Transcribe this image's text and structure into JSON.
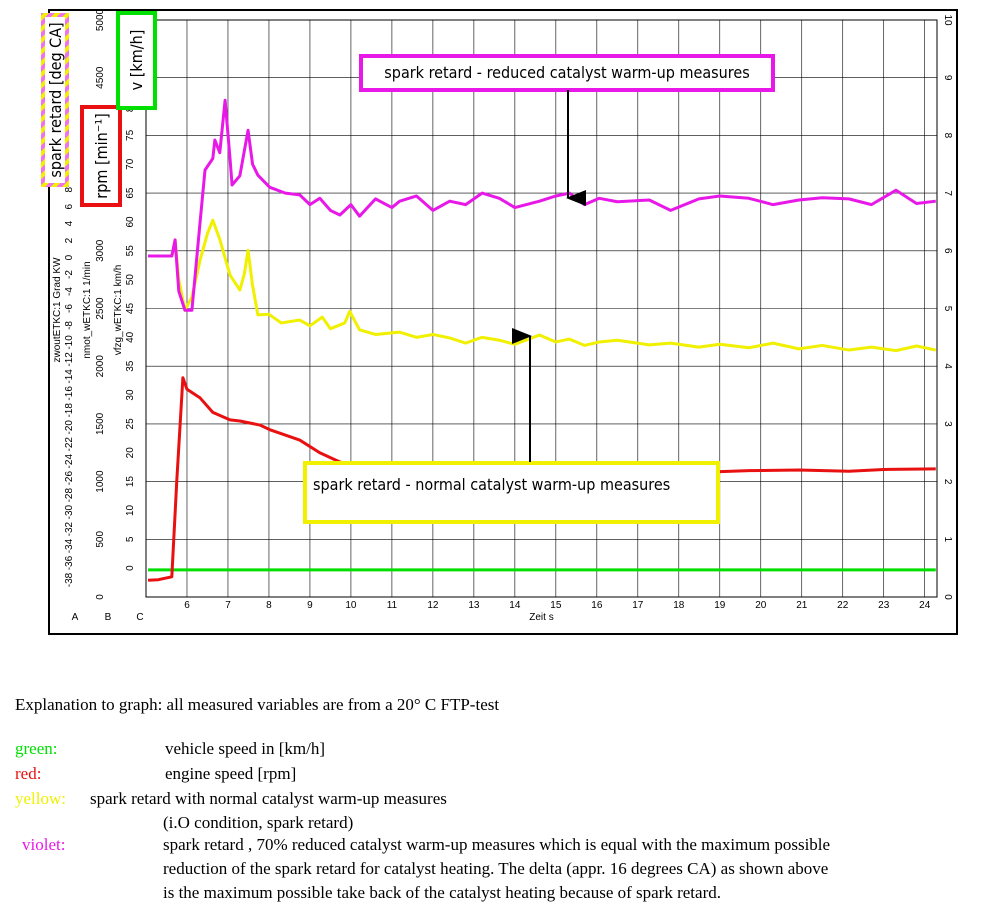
{
  "chart_data": {
    "type": "line",
    "xlabel": "Zeit s",
    "xlim": [
      5,
      24.3
    ],
    "xticks": [
      6,
      7,
      8,
      9,
      10,
      11,
      12,
      13,
      14,
      15,
      16,
      17,
      18,
      19,
      20,
      21,
      22,
      23,
      24
    ],
    "ylim": [
      0,
      10
    ],
    "yticks": [
      0,
      1,
      2,
      3,
      4,
      5,
      6,
      7,
      8,
      9,
      10
    ],
    "grid": true,
    "axes": [
      {
        "letter": "A",
        "label": "zwoutETKC:1 Grad KW",
        "legend": "spark retard [deg CA]",
        "ylim": [
          -40,
          28
        ],
        "yticks": [
          -38,
          -36,
          -34,
          -32,
          -30,
          -28,
          -26,
          -24,
          -22,
          -20,
          -18,
          -16,
          -14,
          -12,
          -10,
          -8,
          -6,
          -4,
          -2,
          0,
          2,
          4,
          6,
          8
        ]
      },
      {
        "letter": "B",
        "label": "nmot_wETKC:1 1/min",
        "legend": "rpm [min⁻¹]",
        "ylim": [
          0,
          5000
        ],
        "yticks": [
          0,
          500,
          1000,
          1500,
          2000,
          2500,
          3000,
          3500,
          4000,
          4500,
          5000
        ]
      },
      {
        "letter": "C",
        "label": "vfzg_wETKC:1 km/h",
        "legend": "v [km/h]",
        "ylim": [
          -5,
          95
        ],
        "yticks": [
          0,
          5,
          10,
          15,
          20,
          25,
          30,
          35,
          40,
          45,
          50,
          55,
          60,
          65,
          70,
          75,
          80,
          85
        ]
      }
    ],
    "series": [
      {
        "color": "#00e000",
        "x": [
          5.05,
          24.27
        ],
        "values": [
          0.47,
          0.47
        ]
      },
      {
        "color": "#e81010",
        "x": [
          5.05,
          5.3,
          5.63,
          5.75,
          5.9,
          6.0,
          6.32,
          6.63,
          7.05,
          7.29,
          7.78,
          8.02,
          8.75,
          9.24,
          9.73,
          10.2,
          11,
          12,
          13,
          14,
          15,
          16,
          17,
          18,
          18.93,
          19.71,
          20.93,
          22.15,
          23.0,
          24.27
        ],
        "values": [
          0.29,
          0.3,
          0.35,
          2.0,
          3.8,
          3.6,
          3.45,
          3.2,
          3.07,
          3.05,
          2.98,
          2.9,
          2.72,
          2.5,
          2.34,
          2.25,
          2.22,
          2.2,
          2.2,
          2.19,
          2.2,
          2.18,
          2.2,
          2.18,
          2.17,
          2.19,
          2.2,
          2.18,
          2.21,
          2.22
        ]
      },
      {
        "color": "#f0f000",
        "x": [
          5.63,
          5.71,
          5.8,
          5.95,
          6.12,
          6.32,
          6.5,
          6.63,
          6.8,
          7.05,
          7.29,
          7.4,
          7.49,
          7.6,
          7.73,
          8.0,
          8.3,
          8.75,
          9.0,
          9.3,
          9.5,
          9.85,
          9.97,
          10.21,
          10.6,
          11.19,
          11.6,
          12.0,
          12.41,
          12.8,
          13.2,
          13.62,
          14.0,
          14.6,
          15.0,
          15.33,
          15.7,
          16.06,
          16.5,
          17.28,
          17.8,
          18.49,
          19.0,
          19.71,
          20.3,
          20.93,
          21.5,
          22.15,
          22.7,
          23.3,
          23.8,
          24.27
        ],
        "values": [
          5.9,
          6.19,
          5.5,
          4.97,
          5.2,
          5.84,
          6.3,
          6.53,
          6.2,
          5.58,
          5.32,
          5.6,
          6.01,
          5.4,
          4.89,
          4.9,
          4.75,
          4.8,
          4.7,
          4.85,
          4.65,
          4.75,
          4.95,
          4.63,
          4.55,
          4.59,
          4.5,
          4.55,
          4.49,
          4.4,
          4.5,
          4.45,
          4.38,
          4.54,
          4.42,
          4.47,
          4.36,
          4.42,
          4.45,
          4.37,
          4.4,
          4.33,
          4.38,
          4.32,
          4.4,
          4.3,
          4.36,
          4.28,
          4.33,
          4.27,
          4.35,
          4.28
        ]
      },
      {
        "color": "#e818e8",
        "x": [
          5.05,
          5.63,
          5.71,
          5.8,
          5.95,
          6.12,
          6.32,
          6.44,
          6.63,
          6.68,
          6.8,
          6.93,
          7.05,
          7.1,
          7.29,
          7.49,
          7.6,
          7.73,
          8.02,
          8.4,
          8.75,
          9.0,
          9.24,
          9.5,
          9.73,
          10.0,
          10.21,
          10.6,
          11.0,
          11.19,
          11.6,
          12.0,
          12.41,
          12.8,
          13.2,
          13.62,
          14.0,
          14.6,
          15.0,
          15.33,
          15.7,
          16.06,
          16.5,
          17.28,
          17.8,
          18.49,
          19.0,
          19.71,
          20.3,
          20.93,
          21.5,
          22.15,
          22.7,
          23.3,
          23.8,
          24.27
        ],
        "values": [
          5.91,
          5.91,
          6.19,
          5.3,
          4.97,
          4.97,
          6.5,
          7.4,
          7.6,
          7.92,
          7.7,
          8.61,
          7.6,
          7.14,
          7.3,
          8.09,
          7.5,
          7.31,
          7.1,
          7.0,
          6.97,
          6.8,
          6.91,
          6.7,
          6.62,
          6.8,
          6.6,
          6.9,
          6.75,
          6.86,
          6.95,
          6.7,
          6.86,
          6.8,
          7.0,
          6.91,
          6.75,
          6.86,
          6.95,
          7.0,
          6.8,
          6.91,
          6.85,
          6.88,
          6.7,
          6.9,
          6.95,
          6.91,
          6.8,
          6.88,
          6.92,
          6.9,
          6.8,
          7.05,
          6.82,
          6.86
        ]
      }
    ],
    "annotations": [
      "spark retard - reduced catalyst warm-up measures",
      "spark retard - normal catalyst warm-up measures"
    ]
  },
  "explanation": {
    "intro": "Explanation to graph: all measured variables are from a 20° C  FTP-test",
    "items": [
      {
        "label": "green:",
        "lines": [
          "vehicle speed in [km/h]"
        ]
      },
      {
        "label": "red:",
        "lines": [
          "engine speed [rpm]"
        ]
      },
      {
        "label": "yellow:",
        "lines": [
          "spark retard with normal catalyst warm-up measures",
          "(i.O condition, spark retard)"
        ]
      },
      {
        "label": "violet:",
        "lines": [
          "spark retard , 70% reduced catalyst warm-up measures which is equal with the maximum possible",
          "reduction of the spark retard for catalyst heating. The delta  (appr. 16 degrees CA) as shown above",
          "is the maximum possible take back of the catalyst heating because of spark retard."
        ]
      }
    ]
  }
}
